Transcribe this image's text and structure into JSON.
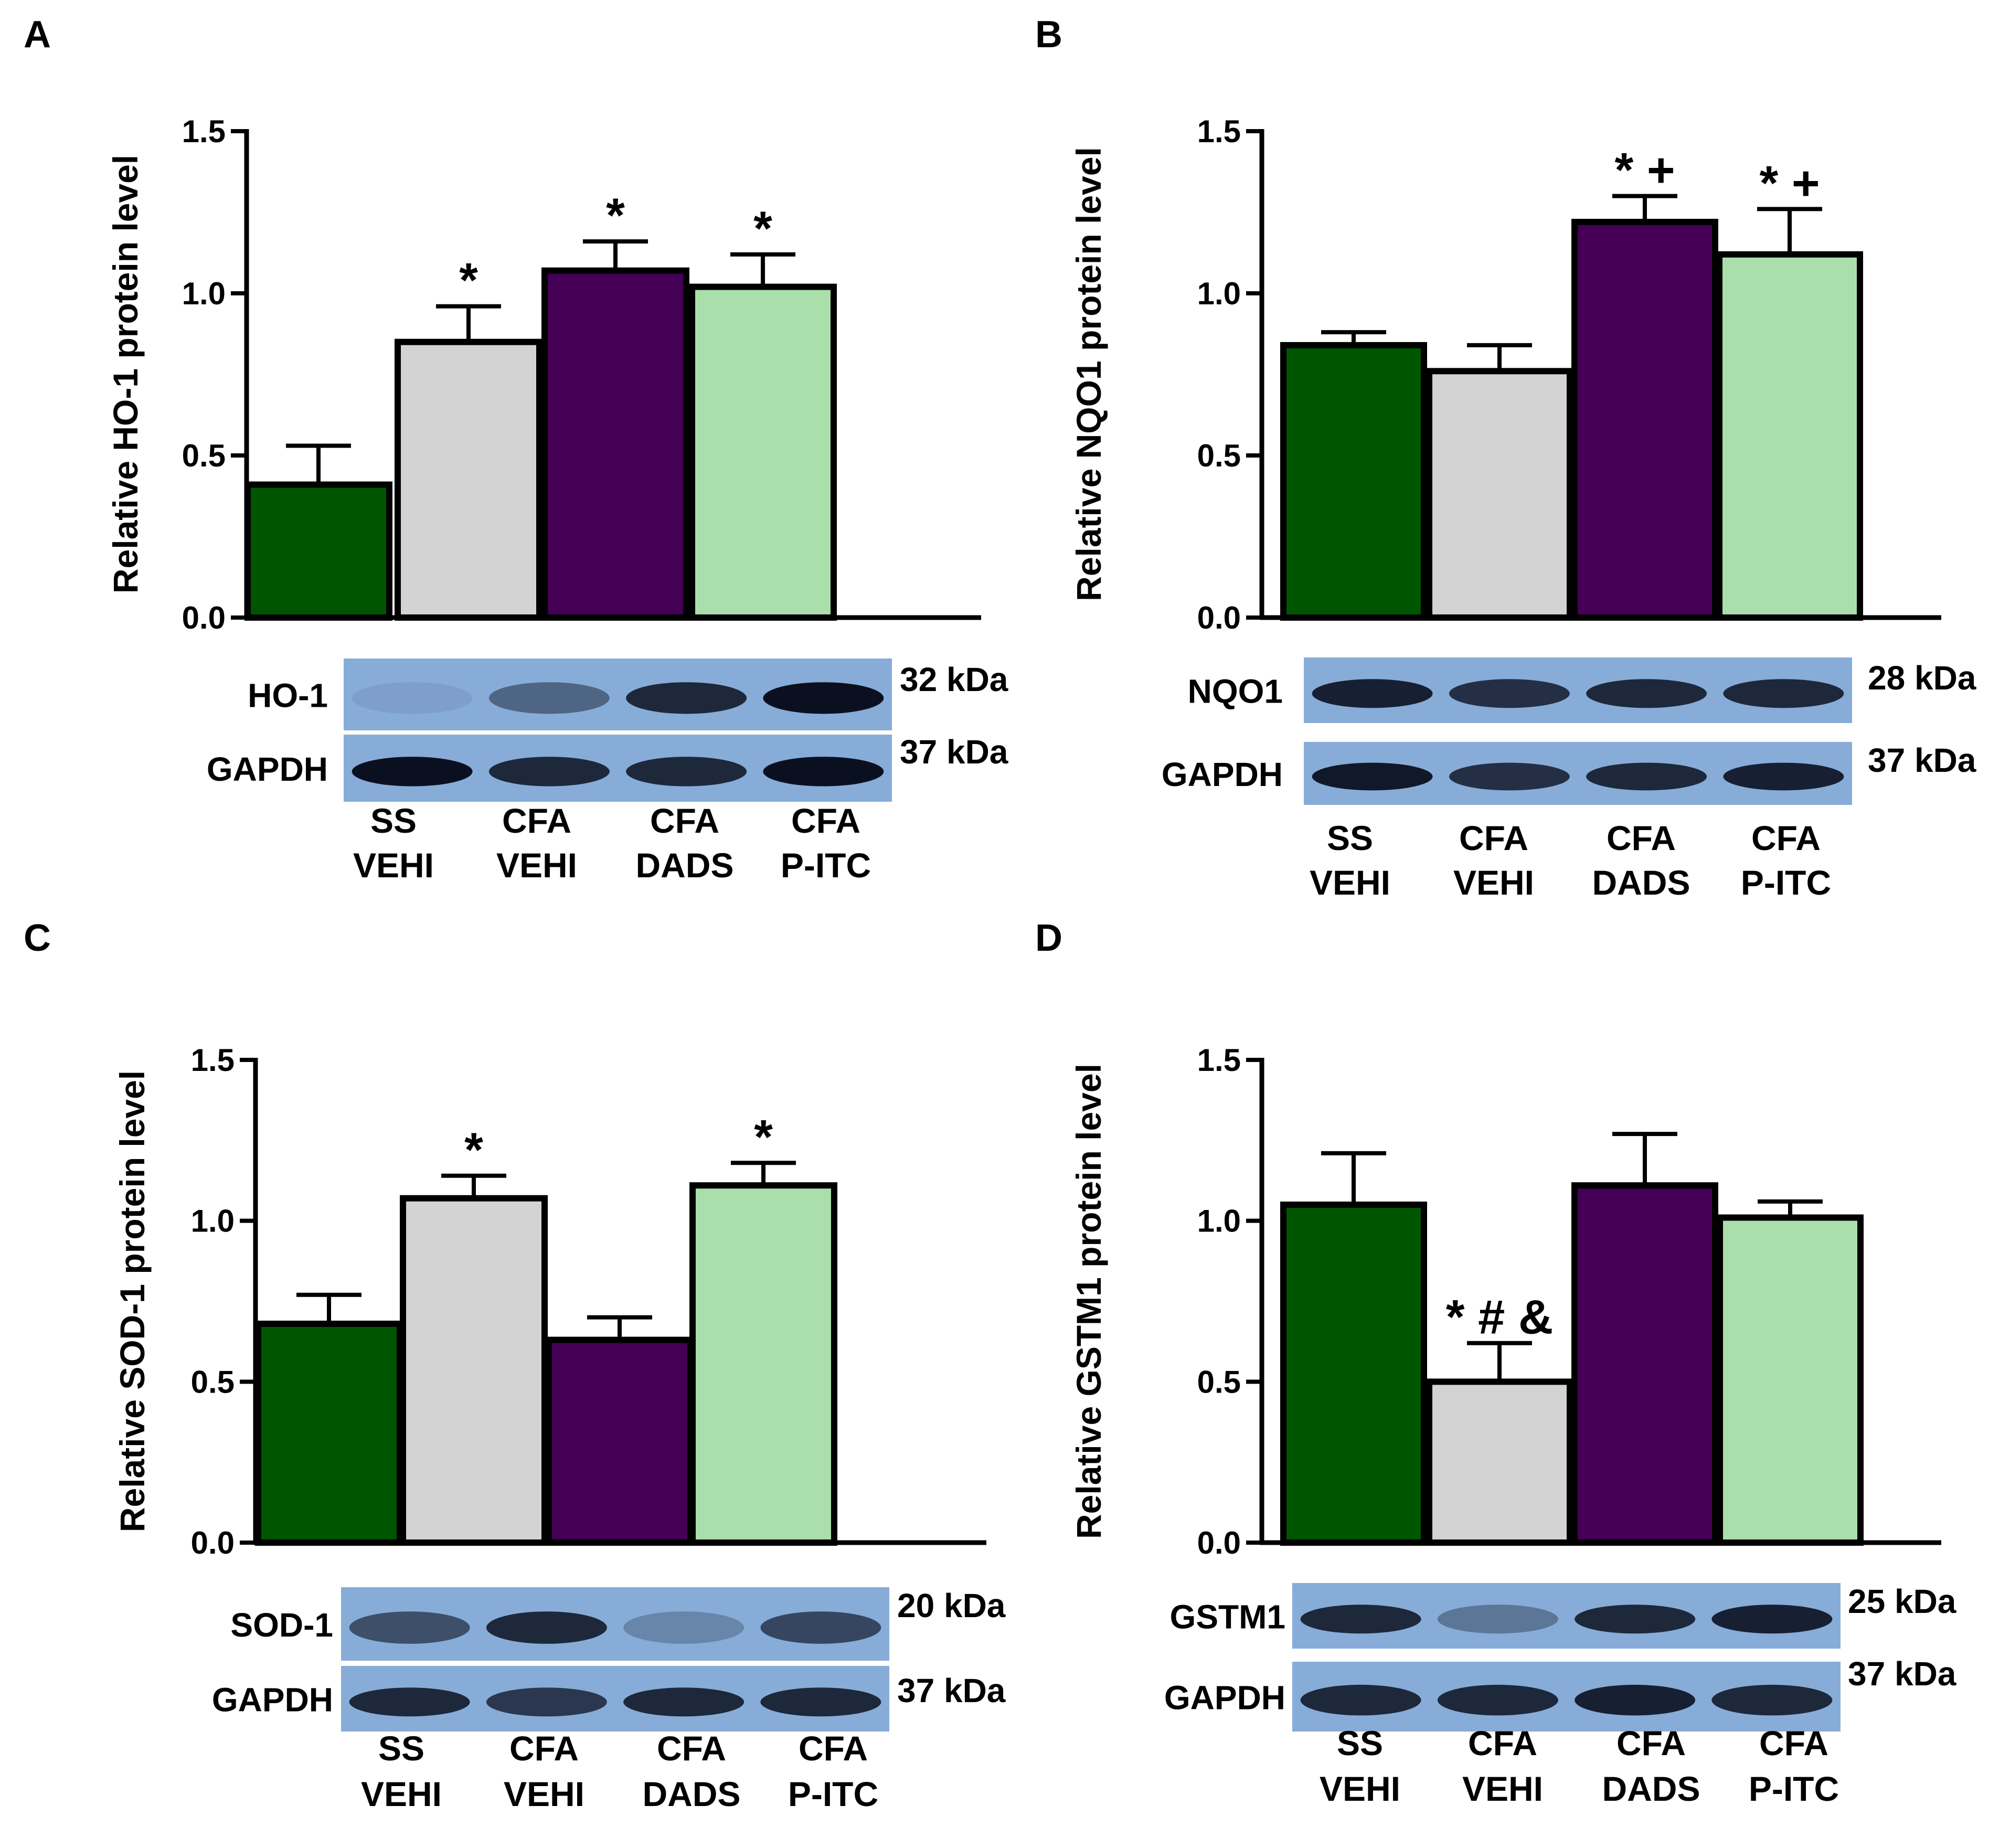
{
  "colors": {
    "ss_vehi": "#005500",
    "cfa_vehi": "#d3d3d3",
    "cfa_dads": "#440055",
    "cfa_pitc": "#aadeaa",
    "blot_bg": "#87acd8",
    "blot_band": "#0b1020"
  },
  "panels": [
    {
      "letter": "A",
      "ylabel": "Relative HO-1 protein level",
      "blots": [
        {
          "label": "HO-1",
          "kda": "32 kDa",
          "intensities": [
            0.08,
            0.45,
            0.85,
            1.0
          ]
        },
        {
          "label": "GAPDH",
          "kda": "37 kDa",
          "intensities": [
            1.0,
            0.85,
            0.85,
            1.0
          ]
        }
      ]
    },
    {
      "letter": "B",
      "ylabel": "Relative NQO1 protein level",
      "blots": [
        {
          "label": "NQO1",
          "kda": "28 kDa",
          "intensities": [
            0.9,
            0.8,
            0.85,
            0.85
          ]
        },
        {
          "label": "GAPDH",
          "kda": "37 kDa",
          "intensities": [
            0.95,
            0.8,
            0.85,
            0.9
          ]
        }
      ]
    },
    {
      "letter": "C",
      "ylabel": "Relative SOD-1 protein level",
      "blots": [
        {
          "label": "SOD-1",
          "kda": "20 kDa",
          "intensities": [
            0.6,
            0.85,
            0.25,
            0.65
          ]
        },
        {
          "label": "GAPDH",
          "kda": "37 kDa",
          "intensities": [
            0.85,
            0.75,
            0.85,
            0.85
          ]
        }
      ]
    },
    {
      "letter": "D",
      "ylabel": "Relative GSTM1 protein level",
      "blots": [
        {
          "label": "GSTM1",
          "kda": "25 kDa",
          "intensities": [
            0.85,
            0.35,
            0.85,
            0.9
          ]
        },
        {
          "label": "GAPDH",
          "kda": "37 kDa",
          "intensities": [
            0.85,
            0.85,
            0.9,
            0.85
          ]
        }
      ]
    }
  ],
  "chart_data": [
    {
      "type": "bar",
      "title": "",
      "xlabel": "",
      "ylabel": "Relative HO-1 protein level",
      "ylim": [
        0,
        1.5
      ],
      "yticks": [
        "0.0",
        "0.5",
        "1.0",
        "1.5"
      ],
      "categories": [
        [
          "SS",
          "VEHI"
        ],
        [
          "CFA",
          "VEHI"
        ],
        [
          "CFA",
          "DADS"
        ],
        [
          "CFA",
          "P-ITC"
        ]
      ],
      "values": [
        0.41,
        0.85,
        1.07,
        1.02
      ],
      "errors": [
        0.12,
        0.11,
        0.09,
        0.1
      ],
      "annotations": [
        "",
        "*",
        "*",
        "*"
      ]
    },
    {
      "type": "bar",
      "title": "",
      "xlabel": "",
      "ylabel": "Relative NQO1 protein level",
      "ylim": [
        0,
        1.5
      ],
      "yticks": [
        "0.0",
        "0.5",
        "1.0",
        "1.5"
      ],
      "categories": [
        [
          "SS",
          "VEHI"
        ],
        [
          "CFA",
          "VEHI"
        ],
        [
          "CFA",
          "DADS"
        ],
        [
          "CFA",
          "P-ITC"
        ]
      ],
      "values": [
        0.84,
        0.76,
        1.22,
        1.12
      ],
      "errors": [
        0.04,
        0.08,
        0.08,
        0.14
      ],
      "annotations": [
        "",
        "",
        "* +",
        "* +"
      ]
    },
    {
      "type": "bar",
      "title": "",
      "xlabel": "",
      "ylabel": "Relative SOD-1 protein level",
      "ylim": [
        0,
        1.5
      ],
      "yticks": [
        "0.0",
        "0.5",
        "1.0",
        "1.5"
      ],
      "categories": [
        [
          "SS",
          "VEHI"
        ],
        [
          "CFA",
          "VEHI"
        ],
        [
          "CFA",
          "DADS"
        ],
        [
          "CFA",
          "P-ITC"
        ]
      ],
      "values": [
        0.68,
        1.07,
        0.63,
        1.11
      ],
      "errors": [
        0.09,
        0.07,
        0.07,
        0.07
      ],
      "annotations": [
        "",
        "*",
        "",
        "*"
      ]
    },
    {
      "type": "bar",
      "title": "",
      "xlabel": "",
      "ylabel": "Relative GSTM1 protein level",
      "ylim": [
        0,
        1.5
      ],
      "yticks": [
        "0.0",
        "0.5",
        "1.0",
        "1.5"
      ],
      "categories": [
        [
          "SS",
          "VEHI"
        ],
        [
          "CFA",
          "VEHI"
        ],
        [
          "CFA",
          "DADS"
        ],
        [
          "CFA",
          "P-ITC"
        ]
      ],
      "values": [
        1.05,
        0.5,
        1.11,
        1.01
      ],
      "errors": [
        0.16,
        0.12,
        0.16,
        0.05
      ],
      "annotations": [
        "",
        "* # &",
        "",
        ""
      ]
    }
  ]
}
